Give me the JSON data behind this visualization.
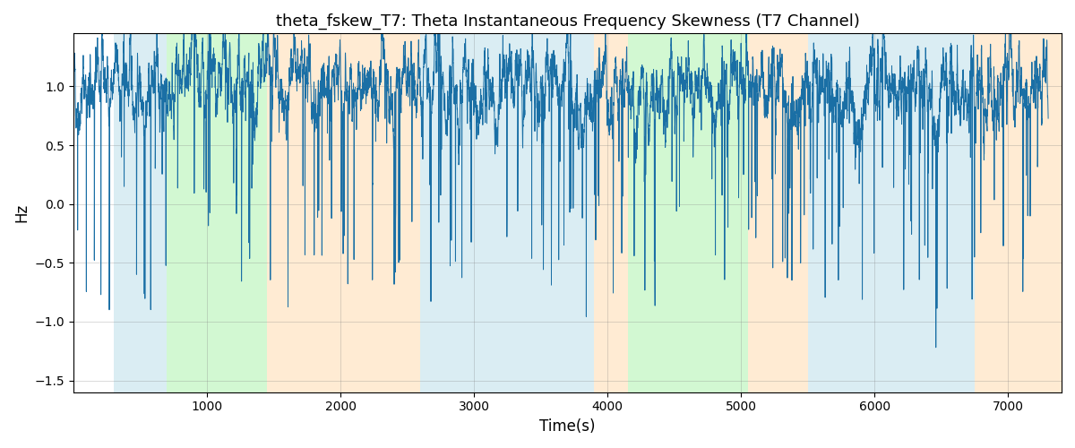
{
  "title": "theta_fskew_T7: Theta Instantaneous Frequency Skewness (T7 Channel)",
  "xlabel": "Time(s)",
  "ylabel": "Hz",
  "xlim": [
    0,
    7400
  ],
  "ylim": [
    -1.6,
    1.45
  ],
  "line_color": "#1a6fa5",
  "line_width": 0.7,
  "colored_regions": [
    {
      "xmin": 300,
      "xmax": 700,
      "color": "#add8e6",
      "alpha": 0.45
    },
    {
      "xmin": 700,
      "xmax": 1450,
      "color": "#90ee90",
      "alpha": 0.4
    },
    {
      "xmin": 1450,
      "xmax": 2600,
      "color": "#ffd8a8",
      "alpha": 0.5
    },
    {
      "xmin": 2600,
      "xmax": 3900,
      "color": "#add8e6",
      "alpha": 0.45
    },
    {
      "xmin": 3900,
      "xmax": 4150,
      "color": "#ffd8a8",
      "alpha": 0.5
    },
    {
      "xmin": 4150,
      "xmax": 4550,
      "color": "#90ee90",
      "alpha": 0.4
    },
    {
      "xmin": 4550,
      "xmax": 5050,
      "color": "#90ee90",
      "alpha": 0.4
    },
    {
      "xmin": 5050,
      "xmax": 5500,
      "color": "#ffd8a8",
      "alpha": 0.5
    },
    {
      "xmin": 5500,
      "xmax": 6750,
      "color": "#add8e6",
      "alpha": 0.45
    },
    {
      "xmin": 6750,
      "xmax": 7400,
      "color": "#ffd8a8",
      "alpha": 0.5
    }
  ],
  "xticks": [
    1000,
    2000,
    3000,
    4000,
    5000,
    6000,
    7000
  ],
  "yticks": [
    -1.5,
    -1.0,
    -0.5,
    0.0,
    0.5,
    1.0
  ],
  "title_fontsize": 13,
  "seed": 42,
  "n_points": 7300
}
